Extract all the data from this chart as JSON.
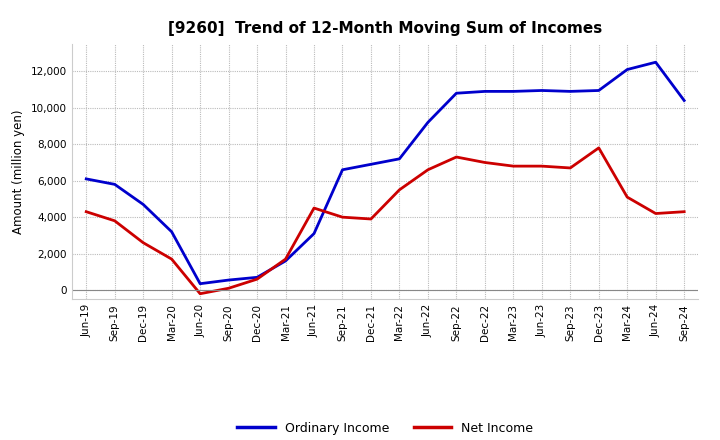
{
  "title": "[9260]  Trend of 12-Month Moving Sum of Incomes",
  "ylabel": "Amount (million yen)",
  "background_color": "#ffffff",
  "grid_color": "#bbbbbb",
  "plot_bg_color": "#ffffff",
  "ordinary_income_color": "#0000cc",
  "net_income_color": "#cc0000",
  "line_width": 2.0,
  "labels": [
    "Jun-19",
    "Sep-19",
    "Dec-19",
    "Mar-20",
    "Jun-20",
    "Sep-20",
    "Dec-20",
    "Mar-21",
    "Jun-21",
    "Sep-21",
    "Dec-21",
    "Mar-22",
    "Jun-22",
    "Sep-22",
    "Dec-22",
    "Mar-23",
    "Jun-23",
    "Sep-23",
    "Dec-23",
    "Mar-24",
    "Jun-24",
    "Sep-24"
  ],
  "ordinary_income": [
    6100,
    5800,
    4700,
    3200,
    350,
    550,
    700,
    1600,
    3100,
    6600,
    6900,
    7200,
    9200,
    10800,
    10900,
    10900,
    10950,
    10900,
    10950,
    12100,
    12500,
    10400
  ],
  "net_income": [
    4300,
    3800,
    2600,
    1700,
    -200,
    100,
    600,
    1700,
    4500,
    4000,
    3900,
    5500,
    6600,
    7300,
    7000,
    6800,
    6800,
    6700,
    7800,
    5100,
    4200,
    4300
  ],
  "ylim": [
    -500,
    13500
  ],
  "yticks": [
    0,
    2000,
    4000,
    6000,
    8000,
    10000,
    12000
  ],
  "title_fontsize": 11,
  "tick_fontsize": 7.5,
  "ylabel_fontsize": 8.5,
  "legend_fontsize": 9
}
